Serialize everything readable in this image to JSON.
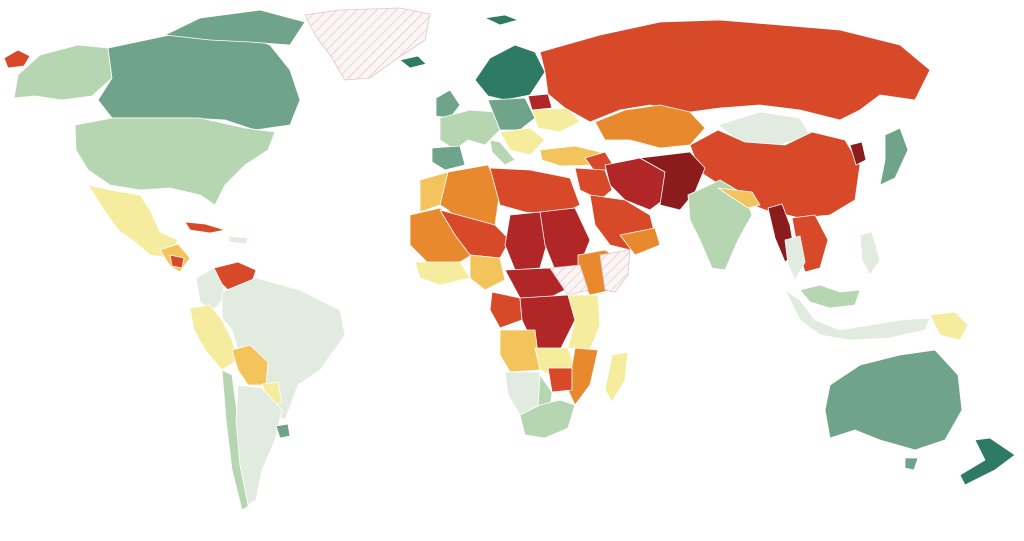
{
  "palette": {
    "background": "#ffffff",
    "nodata_stripe": "#e4c6c6",
    "nodata_fill": "#fbf5f5",
    "border": "#ffffff"
  },
  "legend_scale": [
    {
      "level": "deep-green",
      "color": "#2e7a62"
    },
    {
      "level": "green",
      "color": "#6fa38a"
    },
    {
      "level": "light-green",
      "color": "#b6d6b2"
    },
    {
      "level": "pale-green",
      "color": "#e2ebe0"
    },
    {
      "level": "pale-yellow",
      "color": "#f5ed9d"
    },
    {
      "level": "yellow",
      "color": "#f3c45c"
    },
    {
      "level": "orange",
      "color": "#e9892d"
    },
    {
      "level": "red-orange",
      "color": "#d8492a"
    },
    {
      "level": "red",
      "color": "#b12626"
    },
    {
      "level": "dark-red",
      "color": "#8c1c1c"
    }
  ]
}
